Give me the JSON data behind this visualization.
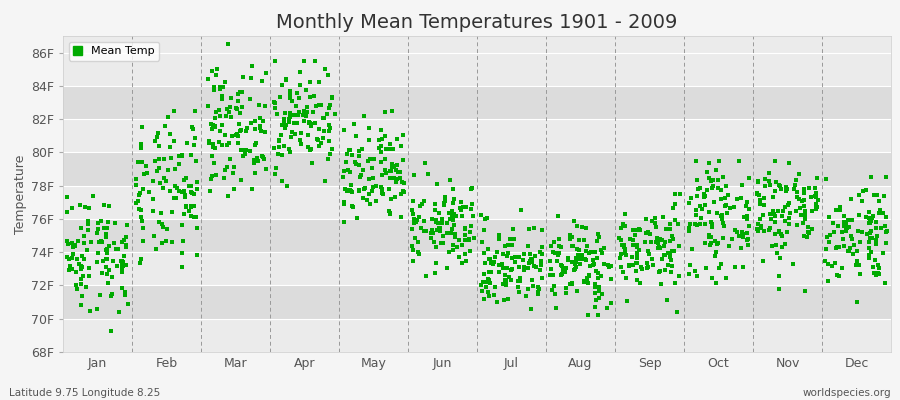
{
  "title": "Monthly Mean Temperatures 1901 - 2009",
  "ylabel": "Temperature",
  "subtitle_left": "Latitude 9.75 Longitude 8.25",
  "subtitle_right": "worldspecies.org",
  "ylim": [
    68,
    87
  ],
  "yticks": [
    68,
    70,
    72,
    74,
    76,
    78,
    80,
    82,
    84,
    86
  ],
  "ytick_labels": [
    "68F",
    "70F",
    "72F",
    "74F",
    "76F",
    "78F",
    "80F",
    "82F",
    "84F",
    "86F"
  ],
  "months": [
    "Jan",
    "Feb",
    "Mar",
    "Apr",
    "May",
    "Jun",
    "Jul",
    "Aug",
    "Sep",
    "Oct",
    "Nov",
    "Dec"
  ],
  "dot_color": "#00aa00",
  "background_color": "#f5f5f5",
  "plot_bg_light": "#ebebeb",
  "plot_bg_dark": "#dcdcdc",
  "grid_color": "#ffffff",
  "vline_color": "#999999",
  "legend_label": "Mean Temp",
  "n_years": 109,
  "monthly_means": [
    74.0,
    77.5,
    81.5,
    82.0,
    78.5,
    75.5,
    73.2,
    73.2,
    74.2,
    76.0,
    76.5,
    75.2
  ],
  "monthly_stds": [
    1.8,
    2.2,
    1.8,
    1.6,
    1.6,
    1.3,
    1.3,
    1.3,
    1.3,
    1.6,
    1.6,
    1.6
  ],
  "monthly_mins": [
    68.0,
    73.0,
    77.0,
    78.0,
    75.0,
    71.0,
    70.0,
    70.0,
    70.0,
    72.0,
    71.0,
    71.0
  ],
  "monthly_maxs": [
    80.0,
    82.5,
    86.5,
    85.5,
    82.5,
    79.5,
    77.5,
    77.5,
    77.5,
    79.5,
    79.5,
    78.5
  ],
  "title_fontsize": 14,
  "axis_label_fontsize": 9,
  "tick_fontsize": 9,
  "legend_fontsize": 8
}
